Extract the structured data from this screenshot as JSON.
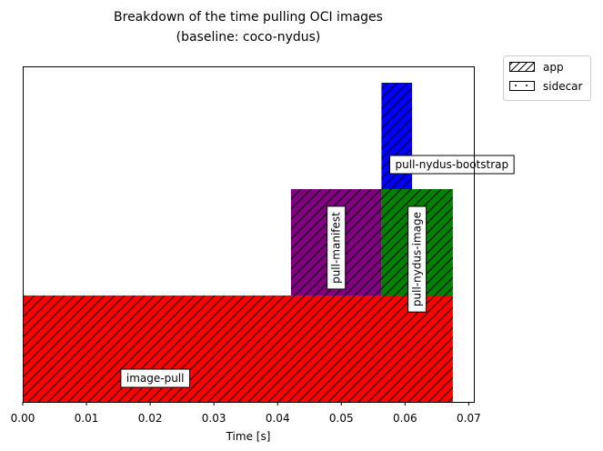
{
  "chart_data": {
    "type": "bar",
    "orientation": "horizontal-timeline",
    "title": "Breakdown of the time pulling OCI images",
    "subtitle": "(baseline: coco-nydus)",
    "xlabel": "Time [s]",
    "ylabel": "",
    "xlim": [
      0,
      0.0708
    ],
    "xticks": [
      "0.00",
      "0.01",
      "0.02",
      "0.03",
      "0.04",
      "0.05",
      "0.06",
      "0.07"
    ],
    "grid": false,
    "legend": {
      "placement": "outside-top-right",
      "entries": [
        {
          "label": "app",
          "hatch": "diagonal"
        },
        {
          "label": "sidecar",
          "hatch": "dots"
        }
      ]
    },
    "spans": [
      {
        "label": "image-pull",
        "start": 0.0,
        "end": 0.0675,
        "level": 0,
        "color": "#ff0000",
        "hatch": "diagonal",
        "label_orientation": "horizontal"
      },
      {
        "label": "pull-manifest",
        "start": 0.0421,
        "end": 0.0563,
        "level": 1,
        "color": "#800080",
        "hatch": "diagonal",
        "label_orientation": "vertical"
      },
      {
        "label": "pull-nydus-image",
        "start": 0.0563,
        "end": 0.0675,
        "level": 1,
        "color": "#008000",
        "hatch": "diagonal",
        "label_orientation": "vertical"
      },
      {
        "label": "pull-nydus-bootstrap",
        "start": 0.0563,
        "end": 0.0611,
        "level": 2,
        "color": "#0000ff",
        "hatch": "diagonal",
        "label_orientation": "horizontal"
      }
    ]
  }
}
